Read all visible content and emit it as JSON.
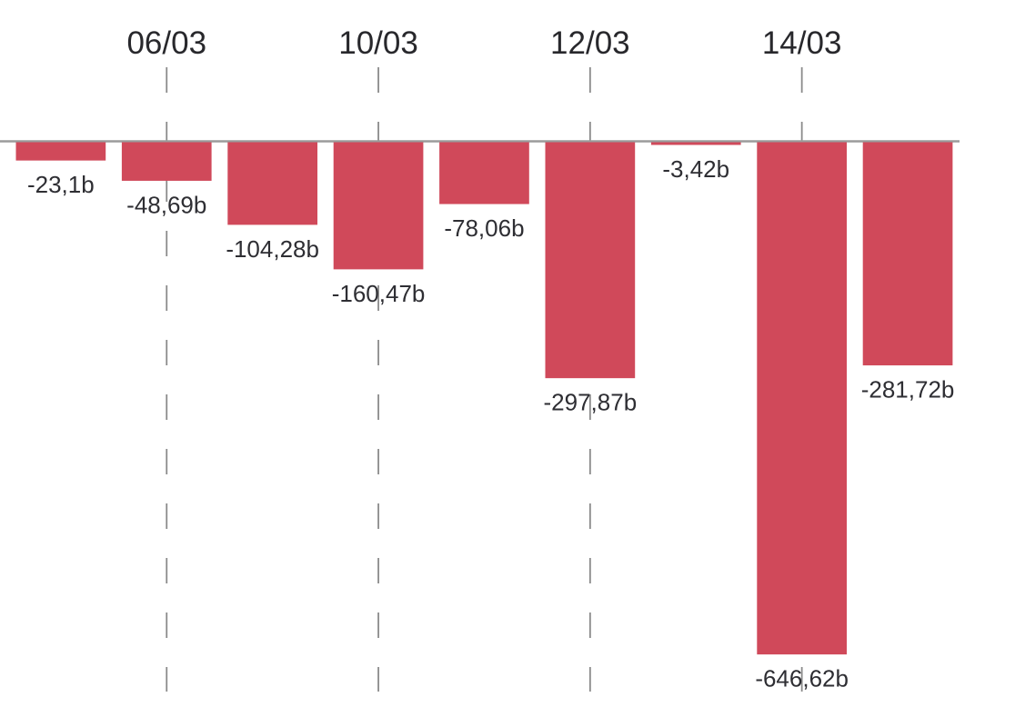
{
  "chart_data": {
    "type": "bar",
    "title": "",
    "xlabel": "",
    "ylabel": "",
    "value_suffix": "b",
    "decimal_separator": ",",
    "legend": "none",
    "grid": "vertical-dashed",
    "ylim": [
      -700,
      0
    ],
    "x_tick_labels": [
      "06/03",
      "10/03",
      "12/03",
      "14/03"
    ],
    "bars": [
      {
        "tick": "",
        "label": "-23,1b",
        "value": -23.1
      },
      {
        "tick": "06/03",
        "label": "-48,69b",
        "value": -48.69
      },
      {
        "tick": "",
        "label": "-104,28b",
        "value": -104.28
      },
      {
        "tick": "10/03",
        "label": "-160,47b",
        "value": -160.47
      },
      {
        "tick": "",
        "label": "-78,06b",
        "value": -78.06
      },
      {
        "tick": "12/03",
        "label": "-297,87b",
        "value": -297.87
      },
      {
        "tick": "",
        "label": "-3,42b",
        "value": -3.42
      },
      {
        "tick": "14/03",
        "label": "-646,62b",
        "value": -646.62
      },
      {
        "tick": "",
        "label": "-281,72b",
        "value": -281.72
      }
    ],
    "colors": {
      "bar": "#d0495a",
      "axis": "#9b9b9b",
      "gridline": "#8b8b8b",
      "value_label": "#2e2e33",
      "tick_label": "#28282c",
      "background": "#ffffff"
    }
  }
}
